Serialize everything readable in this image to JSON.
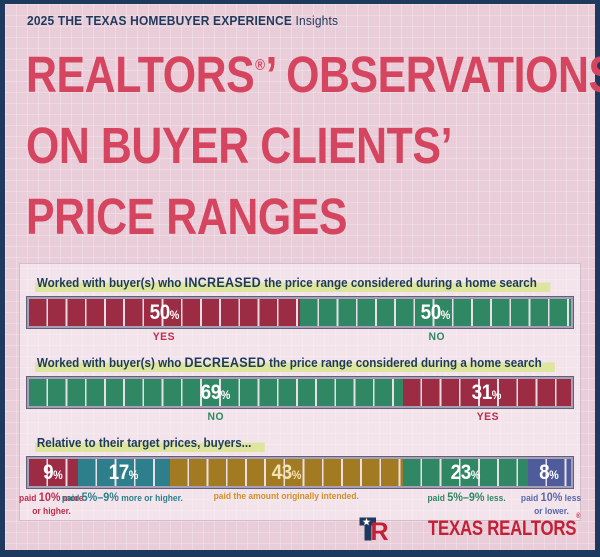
{
  "page": {
    "eyebrow_bold": "2025 THE TEXAS HOMEBUYER EXPERIENCE",
    "eyebrow_light": "Insights",
    "title_line1_name": "REALTORS",
    "title_reg": "®",
    "title_line1_rest": "’ OBSERVATIONS",
    "title_line2": "ON BUYER CLIENTS’",
    "title_line3": "PRICE RANGES"
  },
  "colors": {
    "border_navy": "#1d3a5e",
    "background_pink": "#e9cdd9",
    "title_rose": "#d6455f",
    "text_navy": "#1e3a5c",
    "highlight_green": "#dde59e",
    "bar_red": "#9c2b44",
    "bar_green": "#2f8763",
    "bar_teal": "#2d7f8b",
    "bar_gold": "#a17a22",
    "bar_blue": "#4f5c9b",
    "brand_red": "#c22034"
  },
  "chart_data": [
    {
      "type": "bar",
      "stacked": true,
      "title": "Worked with buyer(s) who INCREASED the price range considered during a home search",
      "title_pre": "Worked with buyer(s) who ",
      "title_keyword": "INCREASED",
      "title_post": " the price range considered during a home search",
      "categories": [
        "YES",
        "NO"
      ],
      "values": [
        50,
        50
      ],
      "segments": [
        {
          "label": "YES",
          "label_lines": [
            "YES"
          ],
          "value": 50,
          "color": "#9c2b44",
          "label_color": "#bf2c4d",
          "value_color": "#ffffff"
        },
        {
          "label": "NO",
          "label_lines": [
            "NO"
          ],
          "value": 50,
          "color": "#2f8763",
          "label_color": "#2f8763",
          "value_color": "#ffffff"
        }
      ]
    },
    {
      "type": "bar",
      "stacked": true,
      "title": "Worked with buyer(s) who DECREASED the price range considered during a home search",
      "title_pre": "Worked with buyer(s) who ",
      "title_keyword": "DECREASED",
      "title_post": " the price range considered during a home search",
      "categories": [
        "NO",
        "YES"
      ],
      "values": [
        69,
        31
      ],
      "segments": [
        {
          "label": "NO",
          "label_lines": [
            "NO"
          ],
          "value": 69,
          "color": "#2f8763",
          "label_color": "#2f8763",
          "value_color": "#ffffff"
        },
        {
          "label": "YES",
          "label_lines": [
            "YES"
          ],
          "value": 31,
          "color": "#9c2b44",
          "label_color": "#bf2c4d",
          "value_color": "#ffffff"
        }
      ]
    },
    {
      "type": "bar",
      "stacked": true,
      "title": "Relative to their target prices, buyers...",
      "title_pre": "Relative to their target prices, buyers...",
      "title_keyword": "",
      "title_post": "",
      "categories": [
        "paid 10% more or higher.",
        "paid 5%–9% more or higher.",
        "paid the amount originally intended.",
        "paid 5%–9% less.",
        "paid 10% less or lower."
      ],
      "values": [
        9,
        17,
        43,
        23,
        8
      ],
      "segments": [
        {
          "label": "paid 10% more or higher.",
          "label_lines": [
            "paid 10% more",
            "or higher."
          ],
          "value": 9,
          "color": "#9c2b44",
          "label_color": "#bf2c4d",
          "value_color": "#ffffff"
        },
        {
          "label": "paid 5%–9% more or higher.",
          "label_lines": [
            "paid 5%–9% more or higher."
          ],
          "value": 17,
          "color": "#2d7f8b",
          "label_color": "#2d7f8b",
          "value_color": "#ffffff"
        },
        {
          "label": "paid the amount originally intended.",
          "label_lines": [
            "paid the amount originally intended."
          ],
          "value": 43,
          "color": "#a17a22",
          "label_color": "#d28f28",
          "value_color": "#f3e3b3"
        },
        {
          "label": "paid 5%–9% less.",
          "label_lines": [
            "paid 5%–9% less."
          ],
          "value": 23,
          "color": "#2f8763",
          "label_color": "#2f8763",
          "value_color": "#ffffff"
        },
        {
          "label": "paid 10% less or lower.",
          "label_lines": [
            "paid 10% less",
            "or lower."
          ],
          "value": 8,
          "color": "#4f5c9b",
          "label_color": "#5a67a8",
          "value_color": "#ffffff"
        }
      ]
    }
  ],
  "footer": {
    "brand": "TEXAS REALTORS",
    "brand_reg": "®",
    "logo": "texas-realtors-tr-mark"
  }
}
